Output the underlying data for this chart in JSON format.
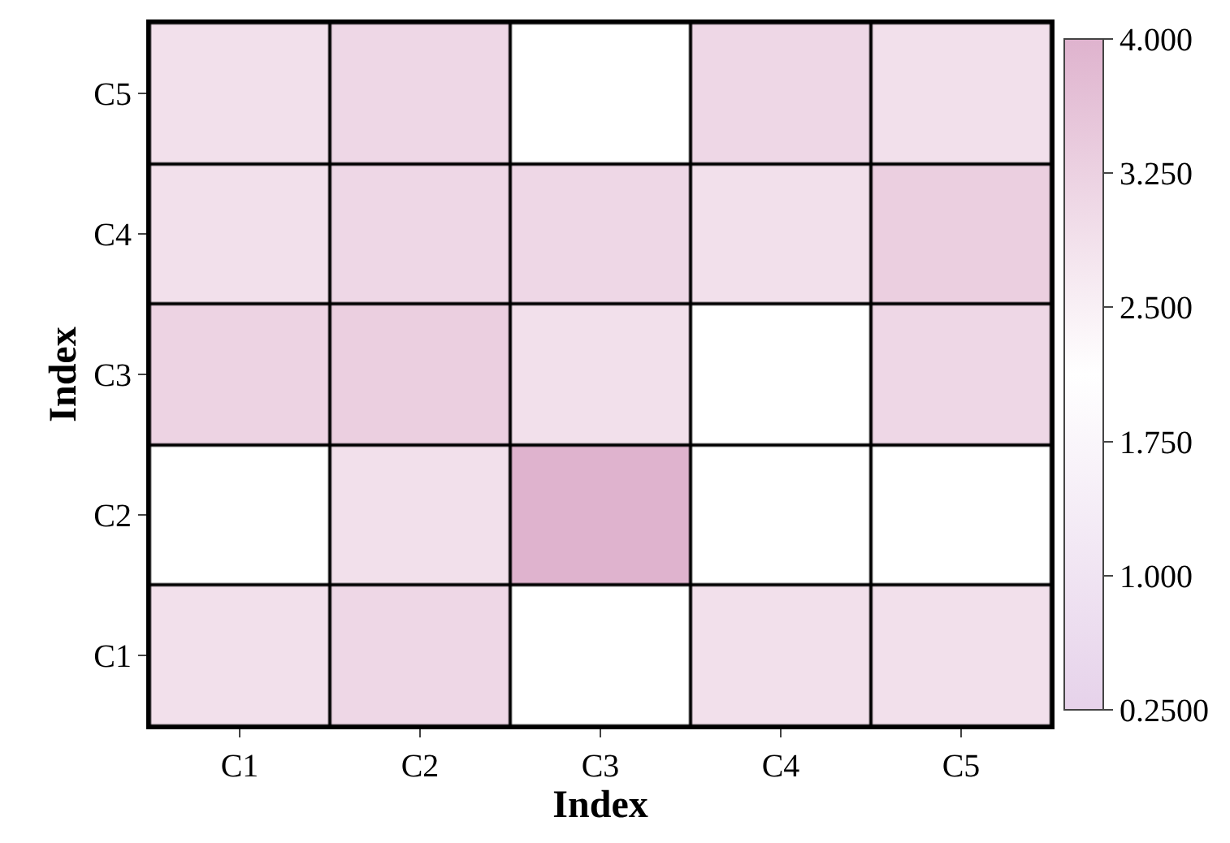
{
  "chart_data": {
    "type": "heatmap",
    "xlabel": "Index",
    "ylabel": "Index",
    "categories": [
      "C1",
      "C2",
      "C3",
      "C4",
      "C5"
    ],
    "y_categories": [
      "C5",
      "C4",
      "C3",
      "C2",
      "C1"
    ],
    "cells": [
      [
        2.9,
        3.1,
        2.125,
        3.1,
        2.9
      ],
      [
        2.9,
        3.1,
        3.1,
        2.9,
        3.3
      ],
      [
        3.2,
        3.3,
        2.9,
        2.125,
        3.1
      ],
      [
        2.125,
        2.9,
        4.0,
        2.125,
        2.125
      ],
      [
        2.9,
        3.1,
        2.125,
        2.9,
        2.9
      ]
    ],
    "clim": [
      0.25,
      4.0
    ],
    "cticks": [
      {
        "value": 0.25,
        "label": "0.2500"
      },
      {
        "value": 1.0,
        "label": "1.000"
      },
      {
        "value": 1.75,
        "label": "1.750"
      },
      {
        "value": 2.5,
        "label": "2.500"
      },
      {
        "value": 3.25,
        "label": "3.250"
      },
      {
        "value": 4.0,
        "label": "4.000"
      }
    ]
  }
}
